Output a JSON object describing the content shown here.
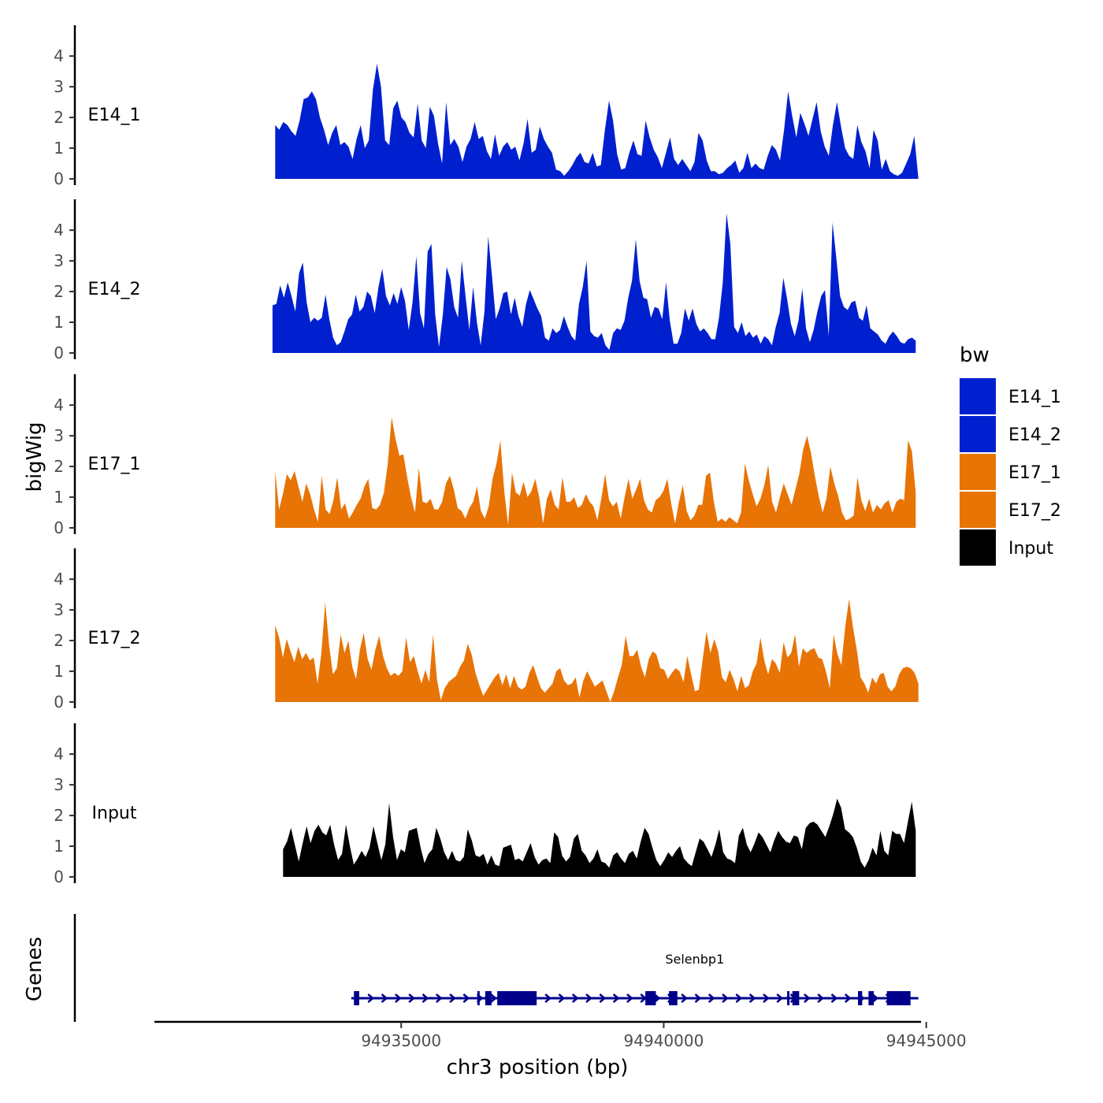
{
  "chart_data": {
    "type": "area",
    "title": "",
    "chromosome": "chr3",
    "xlabel": "chr3 position (bp)",
    "ylabel": "bigWig",
    "genes_label": "Genes",
    "xlim": [
      94930300,
      94944900
    ],
    "ylim": [
      0,
      4.8
    ],
    "y_ticks": [
      0,
      1,
      2,
      3,
      4
    ],
    "x_ticks": [
      94935000,
      94940000,
      94945000
    ],
    "x_tick_labels": [
      "94935000",
      "94940000",
      "94945000"
    ],
    "legend": {
      "title": "bw",
      "position": "right",
      "entries": [
        {
          "label": "E14_1",
          "color": "#0020d0"
        },
        {
          "label": "E14_2",
          "color": "#0020d0"
        },
        {
          "label": "E17_1",
          "color": "#e87406"
        },
        {
          "label": "E17_2",
          "color": "#e87406"
        },
        {
          "label": "Input",
          "color": "#000000"
        }
      ]
    },
    "series": [
      {
        "name": "E14_1",
        "label": "E14_1",
        "color": "#0020d0",
        "start": 94932600,
        "end": 94944850,
        "values": [
          1.75,
          1.6,
          1.85,
          1.75,
          1.55,
          1.4,
          1.9,
          2.6,
          2.65,
          2.85,
          2.6,
          2.0,
          1.6,
          1.1,
          1.5,
          1.75,
          1.1,
          1.2,
          1.05,
          0.65,
          1.3,
          1.75,
          1.0,
          1.25,
          2.9,
          3.75,
          3.0,
          1.25,
          1.1,
          2.3,
          2.55,
          2.0,
          1.85,
          1.5,
          1.35,
          2.45,
          1.25,
          1.0,
          2.35,
          2.05,
          1.15,
          0.5,
          2.5,
          1.1,
          1.3,
          1.05,
          0.55,
          1.05,
          1.3,
          1.85,
          1.3,
          1.4,
          0.9,
          0.65,
          1.45,
          0.75,
          1.05,
          1.2,
          0.95,
          1.05,
          0.6,
          1.15,
          1.95,
          0.85,
          0.95,
          1.7,
          1.3,
          1.05,
          0.85,
          0.3,
          0.25,
          0.1,
          0.25,
          0.45,
          0.7,
          0.85,
          0.55,
          0.5,
          0.85,
          0.4,
          0.45,
          1.6,
          2.55,
          1.9,
          0.8,
          0.3,
          0.35,
          0.85,
          1.25,
          0.8,
          0.75,
          1.9,
          1.35,
          0.95,
          0.7,
          0.35,
          0.85,
          1.35,
          0.65,
          0.45,
          0.65,
          0.45,
          0.25,
          0.55,
          1.5,
          1.25,
          0.6,
          0.25,
          0.25,
          0.15,
          0.2,
          0.35,
          0.45,
          0.6,
          0.2,
          0.35,
          0.85,
          0.35,
          0.5,
          0.35,
          0.3,
          0.75,
          1.1,
          0.95,
          0.6,
          1.6,
          2.85,
          2.05,
          1.35,
          2.15,
          1.8,
          1.4,
          1.95,
          2.5,
          1.55,
          1.05,
          0.75,
          1.75,
          2.5,
          1.7,
          1.0,
          0.75,
          0.65,
          1.75,
          1.2,
          0.9,
          0.35,
          1.6,
          1.25,
          0.3,
          0.65,
          0.25,
          0.15,
          0.1,
          0.2,
          0.5,
          0.8,
          1.4,
          0.0
        ],
        "tick_labels": [
          "0",
          "1",
          "2",
          "3",
          "4"
        ]
      },
      {
        "name": "E14_2",
        "label": "E14_2",
        "color": "#0020d0",
        "start": 94932550,
        "end": 94944800,
        "values": [
          1.55,
          1.6,
          2.2,
          1.8,
          2.3,
          1.85,
          1.35,
          2.6,
          2.95,
          1.65,
          1.0,
          1.15,
          1.05,
          1.15,
          1.9,
          1.1,
          0.5,
          0.25,
          0.35,
          0.7,
          1.1,
          1.25,
          1.9,
          1.35,
          1.5,
          2.0,
          1.85,
          1.3,
          2.15,
          2.75,
          1.85,
          1.55,
          1.95,
          1.6,
          2.15,
          1.7,
          0.75,
          1.65,
          3.15,
          1.3,
          0.8,
          3.3,
          3.55,
          1.25,
          0.2,
          1.25,
          2.8,
          2.4,
          1.5,
          1.15,
          3.0,
          1.85,
          0.75,
          2.15,
          1.0,
          0.25,
          1.35,
          3.8,
          2.5,
          1.1,
          1.45,
          1.95,
          2.0,
          1.25,
          1.8,
          1.2,
          0.85,
          1.6,
          2.05,
          1.75,
          1.45,
          1.2,
          0.5,
          0.4,
          0.8,
          0.65,
          0.75,
          1.2,
          0.85,
          0.55,
          0.4,
          1.6,
          2.15,
          3.0,
          0.7,
          0.55,
          0.5,
          0.65,
          0.25,
          0.1,
          0.65,
          0.8,
          0.75,
          1.05,
          1.8,
          2.35,
          3.7,
          2.35,
          1.8,
          1.75,
          1.15,
          1.5,
          1.45,
          1.1,
          2.3,
          1.05,
          0.3,
          0.3,
          0.65,
          1.45,
          1.05,
          1.45,
          0.95,
          0.7,
          0.8,
          0.65,
          0.45,
          0.45,
          1.15,
          2.3,
          4.55,
          3.55,
          0.85,
          0.65,
          1.0,
          0.55,
          0.7,
          0.5,
          0.6,
          0.3,
          0.55,
          0.45,
          0.25,
          0.85,
          1.3,
          2.45,
          1.75,
          0.95,
          0.55,
          1.05,
          2.1,
          0.8,
          0.35,
          0.75,
          1.35,
          1.85,
          2.05,
          0.55,
          4.25,
          3.1,
          1.85,
          1.5,
          1.4,
          1.65,
          1.7,
          1.15,
          1.05,
          1.55,
          0.8,
          0.7,
          0.6,
          0.4,
          0.3,
          0.55,
          0.7,
          0.55,
          0.35,
          0.3,
          0.45,
          0.5,
          0.4
        ],
        "tick_labels": [
          "0",
          "1",
          "2",
          "3",
          "4"
        ]
      },
      {
        "name": "E17_1",
        "label": "E17_1",
        "color": "#e87406",
        "start": 94932600,
        "end": 94944800,
        "values": [
          1.85,
          0.6,
          1.1,
          1.75,
          1.55,
          1.85,
          1.35,
          0.85,
          1.45,
          1.1,
          0.6,
          0.2,
          1.7,
          0.6,
          0.45,
          0.9,
          1.65,
          0.6,
          0.8,
          0.3,
          0.5,
          0.75,
          0.95,
          1.35,
          1.6,
          0.65,
          0.6,
          0.75,
          1.15,
          2.1,
          3.6,
          2.9,
          2.35,
          2.4,
          1.65,
          1.0,
          0.5,
          1.95,
          0.85,
          0.8,
          0.95,
          0.6,
          0.6,
          0.85,
          1.45,
          1.7,
          1.25,
          0.65,
          0.55,
          0.3,
          0.65,
          0.85,
          1.35,
          0.55,
          0.3,
          0.7,
          1.6,
          2.1,
          2.85,
          1.2,
          0.1,
          1.8,
          1.15,
          1.05,
          1.5,
          1.0,
          1.2,
          1.6,
          1.0,
          0.15,
          0.95,
          1.25,
          0.75,
          0.6,
          1.65,
          0.85,
          0.85,
          1.0,
          0.65,
          0.75,
          1.1,
          0.85,
          0.7,
          0.25,
          0.95,
          1.75,
          0.9,
          0.7,
          0.85,
          0.3,
          1.0,
          1.6,
          0.95,
          1.25,
          1.6,
          0.9,
          0.6,
          0.5,
          0.9,
          1.0,
          1.2,
          1.6,
          0.8,
          0.15,
          0.85,
          1.4,
          0.55,
          0.25,
          0.4,
          0.75,
          0.75,
          1.7,
          1.8,
          0.85,
          0.2,
          0.3,
          0.2,
          0.35,
          0.25,
          0.15,
          0.5,
          2.1,
          1.55,
          1.1,
          0.7,
          0.95,
          1.4,
          2.05,
          0.85,
          0.5,
          1.0,
          1.45,
          1.1,
          0.75,
          1.25,
          1.75,
          2.55,
          3.0,
          2.45,
          1.7,
          1.05,
          0.5,
          0.95,
          2.0,
          1.45,
          1.05,
          0.5,
          0.25,
          0.3,
          0.4,
          1.65,
          0.9,
          0.55,
          0.95,
          0.5,
          0.75,
          0.6,
          0.8,
          0.9,
          0.5,
          0.85,
          0.95,
          0.9,
          2.85,
          2.5,
          1.15
        ],
        "tick_labels": [
          "0",
          "1",
          "2",
          "3",
          "4"
        ]
      },
      {
        "name": "E17_2",
        "label": "E17_2",
        "color": "#e87406",
        "start": 94932600,
        "end": 94944850,
        "values": [
          2.5,
          2.1,
          1.45,
          2.05,
          1.65,
          1.3,
          1.8,
          1.4,
          1.6,
          1.35,
          1.45,
          0.6,
          1.6,
          3.25,
          1.85,
          0.9,
          1.1,
          2.2,
          1.6,
          2.0,
          1.15,
          0.75,
          1.7,
          2.25,
          1.4,
          1.05,
          1.7,
          2.15,
          1.5,
          1.1,
          0.85,
          0.95,
          0.85,
          1.0,
          2.1,
          1.3,
          1.5,
          1.0,
          0.6,
          1.05,
          0.65,
          2.2,
          0.75,
          0.05,
          0.45,
          0.65,
          0.75,
          0.85,
          1.15,
          1.35,
          1.9,
          1.55,
          0.95,
          0.55,
          0.2,
          0.4,
          0.6,
          0.8,
          0.95,
          0.55,
          0.9,
          0.45,
          0.85,
          0.5,
          0.4,
          0.5,
          0.95,
          1.2,
          0.8,
          0.45,
          0.3,
          0.45,
          0.6,
          1.0,
          1.1,
          0.7,
          0.55,
          0.6,
          0.8,
          0.15,
          0.7,
          1.0,
          0.75,
          0.5,
          0.6,
          0.7,
          0.35,
          0.0,
          0.35,
          0.8,
          1.2,
          2.15,
          1.5,
          1.5,
          1.7,
          1.15,
          0.8,
          1.4,
          1.65,
          1.55,
          1.1,
          1.05,
          0.75,
          0.95,
          1.1,
          1.0,
          0.65,
          1.5,
          0.9,
          0.35,
          0.4,
          1.4,
          2.3,
          1.6,
          2.05,
          1.65,
          0.8,
          0.65,
          1.05,
          0.75,
          0.35,
          0.85,
          0.45,
          0.55,
          1.0,
          1.25,
          2.1,
          1.35,
          0.9,
          1.4,
          1.25,
          0.95,
          1.95,
          1.45,
          1.6,
          2.2,
          1.15,
          1.75,
          1.6,
          1.7,
          1.75,
          1.45,
          1.4,
          1.0,
          0.45,
          2.2,
          1.55,
          1.2,
          2.45,
          3.35,
          2.45,
          1.7,
          0.8,
          0.6,
          0.3,
          0.8,
          0.6,
          0.9,
          0.95,
          0.5,
          0.35,
          0.5,
          0.9,
          1.1,
          1.15,
          1.1,
          0.95,
          0.6
        ],
        "tick_labels": [
          "0",
          "1",
          "2",
          "3",
          "4"
        ]
      },
      {
        "name": "Input",
        "label": "Input",
        "color": "#000000",
        "start": 94932750,
        "end": 94944800,
        "values": [
          0.9,
          1.15,
          1.6,
          1.05,
          0.5,
          1.1,
          1.65,
          1.1,
          1.5,
          1.7,
          1.45,
          1.35,
          1.7,
          1.05,
          0.55,
          0.75,
          1.7,
          1.0,
          0.4,
          0.6,
          0.85,
          0.65,
          0.95,
          1.65,
          1.1,
          0.55,
          1.05,
          2.4,
          1.3,
          0.55,
          0.9,
          0.8,
          1.5,
          1.55,
          1.6,
          0.95,
          0.45,
          0.75,
          0.9,
          1.6,
          1.25,
          0.8,
          0.55,
          0.85,
          0.55,
          0.5,
          0.65,
          1.55,
          1.2,
          0.7,
          0.65,
          0.75,
          0.4,
          0.7,
          0.4,
          0.35,
          0.95,
          1.0,
          1.05,
          0.55,
          0.6,
          0.5,
          0.8,
          1.1,
          0.65,
          0.4,
          0.55,
          0.6,
          0.45,
          1.45,
          1.3,
          0.7,
          0.5,
          0.65,
          1.25,
          1.4,
          0.85,
          0.7,
          0.45,
          0.6,
          0.9,
          0.5,
          0.45,
          0.3,
          0.7,
          0.8,
          0.6,
          0.45,
          0.75,
          0.85,
          0.6,
          1.15,
          1.6,
          1.4,
          0.95,
          0.55,
          0.35,
          0.55,
          0.8,
          0.65,
          0.85,
          1.0,
          0.6,
          0.45,
          0.35,
          0.8,
          1.25,
          1.15,
          0.9,
          0.65,
          1.05,
          1.55,
          0.8,
          0.6,
          0.55,
          0.45,
          1.35,
          1.6,
          1.05,
          0.8,
          1.1,
          1.45,
          1.3,
          1.05,
          0.8,
          1.2,
          1.5,
          1.3,
          1.15,
          1.1,
          1.35,
          1.3,
          0.9,
          1.6,
          1.75,
          1.8,
          1.7,
          1.5,
          1.3,
          1.65,
          2.05,
          2.55,
          2.25,
          1.55,
          1.45,
          1.3,
          0.95,
          0.5,
          0.3,
          0.55,
          0.95,
          0.7,
          1.5,
          0.85,
          0.7,
          1.5,
          1.4,
          1.4,
          1.1,
          1.8,
          2.45,
          1.5
        ],
        "tick_labels": [
          "0",
          "1",
          "2",
          "3",
          "4"
        ]
      }
    ],
    "gene": {
      "name": "Selenbp1",
      "strand": "+",
      "color": "#00008b",
      "start": 94934050,
      "end": 94944850,
      "exons": [
        [
          94934100,
          94934200
        ],
        [
          94936450,
          94936470
        ],
        [
          94936600,
          94936720
        ],
        [
          94936830,
          94937580
        ],
        [
          94939650,
          94939850
        ],
        [
          94940100,
          94940260
        ],
        [
          94942350,
          94942380
        ],
        [
          94942450,
          94942580
        ],
        [
          94943700,
          94943780
        ],
        [
          94943900,
          94944000
        ],
        [
          94944250,
          94944700
        ]
      ]
    }
  }
}
